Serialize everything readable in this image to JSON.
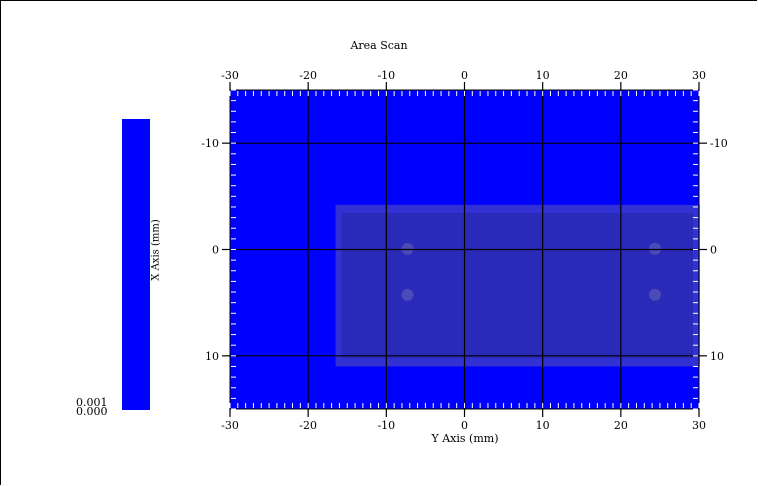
{
  "chart_data": {
    "type": "heatmap",
    "title": "Area Scan",
    "xlabel": "Y Axis (mm)",
    "ylabel": "X Axis (mm)",
    "xlim": [
      -30,
      30
    ],
    "ylim": [
      -15,
      15
    ],
    "x_ticks": [
      "-30",
      "-20",
      "-10",
      "0",
      "10",
      "20",
      "30"
    ],
    "y_ticks_left": [
      "-10",
      "0",
      "10"
    ],
    "y_ticks_right": [
      "-10",
      "0",
      "10"
    ],
    "grid": true,
    "fill_color": "#0000ff",
    "colorbar": {
      "min_label": "0.000",
      "max_label": "0.001",
      "color": "#0000ff"
    },
    "overlay_image": {
      "description": "grey part photo overlay",
      "x_range": [
        -16.5,
        30
      ],
      "y_range": [
        -4.2,
        11
      ]
    }
  }
}
